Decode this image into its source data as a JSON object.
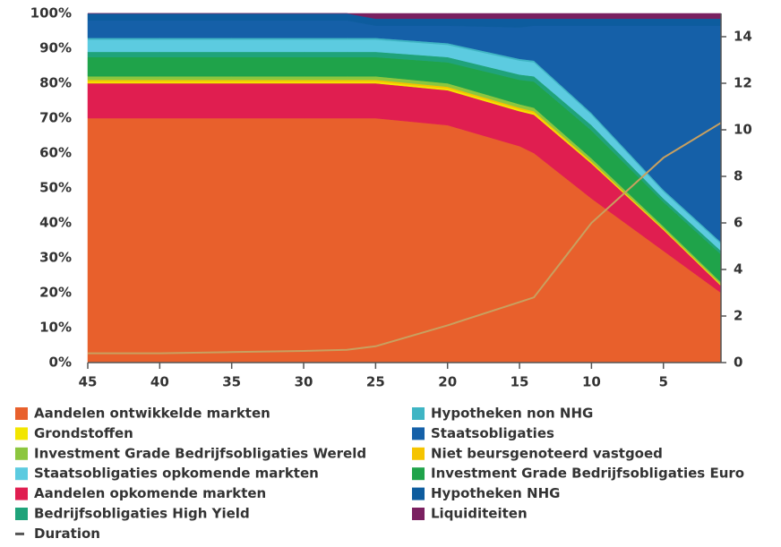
{
  "chart_data": {
    "type": "stacked_area",
    "x": [
      45,
      40,
      35,
      30,
      27,
      25,
      20,
      15,
      14,
      10,
      5,
      1
    ],
    "xlim": [
      45,
      1
    ],
    "xticks": [
      45,
      40,
      35,
      30,
      25,
      20,
      15,
      10,
      5
    ],
    "ylim": [
      0,
      100
    ],
    "yticks": [
      {
        "value": 0,
        "label": "0%"
      },
      {
        "value": 10,
        "label": "10%"
      },
      {
        "value": 20,
        "label": "20%"
      },
      {
        "value": 30,
        "label": "30%"
      },
      {
        "value": 40,
        "label": "40%"
      },
      {
        "value": 50,
        "label": "50%"
      },
      {
        "value": 60,
        "label": "60%"
      },
      {
        "value": 70,
        "label": "70%"
      },
      {
        "value": 80,
        "label": "80%"
      },
      {
        "value": 90,
        "label": "90%"
      },
      {
        "value": 100,
        "label": "100%"
      }
    ],
    "y2lim": [
      0,
      15
    ],
    "y2ticks": [
      0,
      2,
      4,
      6,
      8,
      10,
      12,
      14
    ],
    "series": [
      {
        "name": "Aandelen ontwikkelde markten",
        "color": "#e8602c",
        "values": [
          70,
          70,
          70,
          70,
          70,
          70,
          68,
          62,
          60,
          47,
          32,
          20
        ]
      },
      {
        "name": "Aandelen opkomende markten",
        "color": "#e01e50",
        "values": [
          10,
          10,
          10,
          10,
          10,
          10,
          10,
          10,
          11,
          10,
          6,
          2
        ]
      },
      {
        "name": "Grondstoffen",
        "color": "#f2e600",
        "values": [
          0.5,
          0.5,
          0.5,
          0.5,
          0.5,
          0.5,
          0.5,
          0.5,
          0.5,
          0.3,
          0.2,
          0.2
        ]
      },
      {
        "name": "Niet beursgenoteerd vastgoed",
        "color": "#f5c400",
        "values": [
          0.5,
          0.5,
          0.5,
          0.5,
          0.5,
          0.5,
          0.5,
          0.5,
          0.5,
          0.3,
          0.2,
          0.2
        ]
      },
      {
        "name": "Investment Grade Bedrijfsobligaties Wereld",
        "color": "#8cc63f",
        "values": [
          1,
          1,
          1,
          1,
          1,
          1,
          1,
          1,
          1,
          0.9,
          0.6,
          0.6
        ]
      },
      {
        "name": "Investment Grade Bedrijfsobligaties Euro",
        "color": "#1fa34a",
        "values": [
          5.5,
          5.5,
          5.5,
          5.5,
          5.5,
          5.5,
          6,
          7,
          7.5,
          8,
          7,
          8
        ]
      },
      {
        "name": "Bedrijfsobligaties High Yield",
        "color": "#1fa37a",
        "values": [
          1.5,
          1.5,
          1.5,
          1.5,
          1.5,
          1.5,
          1.5,
          1.5,
          1.5,
          1.5,
          1,
          1
        ]
      },
      {
        "name": "Staatsobligaties opkomende markten",
        "color": "#5ccbe0",
        "values": [
          3.5,
          3.5,
          3.5,
          3.5,
          3.5,
          3.5,
          3.5,
          4,
          4,
          3,
          2,
          2
        ]
      },
      {
        "name": "Hypotheken non NHG",
        "color": "#3fb5c4",
        "values": [
          0.5,
          0.5,
          0.5,
          0.5,
          0.5,
          0.5,
          0.5,
          0.5,
          0.5,
          0.5,
          0.5,
          0.5
        ]
      },
      {
        "name": "Staatsobligaties",
        "color": "#1560a8",
        "values": [
          5,
          5,
          5,
          5,
          5,
          3.5,
          5,
          9,
          10,
          25,
          47,
          62
        ]
      },
      {
        "name": "Hypotheken NHG",
        "color": "#0d5c9e",
        "values": [
          2,
          2,
          2,
          2,
          2,
          2,
          2,
          2.5,
          2,
          2,
          2,
          2
        ]
      },
      {
        "name": "Liquiditeiten",
        "color": "#7a2060",
        "values": [
          0,
          0,
          0,
          0,
          0,
          1.5,
          1.5,
          1.5,
          1.5,
          1.5,
          1.5,
          1.5
        ]
      },
      {
        "name": "Duration",
        "color": "#c8a060",
        "axis": "y2",
        "values": [
          0.4,
          0.4,
          0.45,
          0.5,
          0.55,
          0.7,
          1.6,
          2.6,
          2.8,
          6,
          8.8,
          10.3
        ]
      }
    ]
  }
}
